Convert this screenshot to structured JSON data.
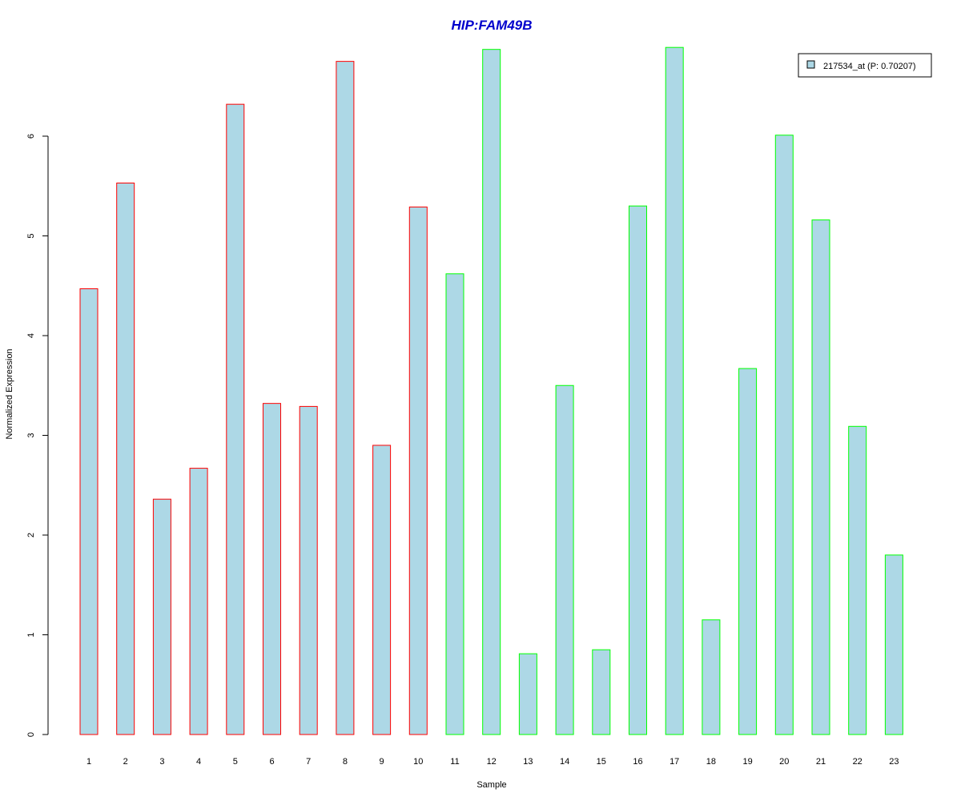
{
  "chart_data": {
    "type": "bar",
    "title": "HIP:FAM49B",
    "xlabel": "Sample",
    "ylabel": "Normalized Expression",
    "categories": [
      "1",
      "2",
      "3",
      "4",
      "5",
      "6",
      "7",
      "8",
      "9",
      "10",
      "11",
      "12",
      "13",
      "14",
      "15",
      "16",
      "17",
      "18",
      "19",
      "20",
      "21",
      "22",
      "23"
    ],
    "values": [
      4.47,
      5.53,
      2.36,
      2.67,
      6.32,
      3.32,
      3.29,
      6.75,
      2.9,
      5.29,
      4.62,
      6.87,
      0.81,
      3.5,
      0.85,
      5.3,
      6.89,
      1.15,
      3.67,
      6.01,
      5.16,
      3.09,
      1.8
    ],
    "groups": [
      "A",
      "A",
      "A",
      "A",
      "A",
      "A",
      "A",
      "A",
      "A",
      "A",
      "B",
      "B",
      "B",
      "B",
      "B",
      "B",
      "B",
      "B",
      "B",
      "B",
      "B",
      "B",
      "B"
    ],
    "group_colors": {
      "A": "#ff0000",
      "B": "#00ff00"
    },
    "bar_fill": "#add8e6",
    "title_color": "#0000cc",
    "yticks": [
      0,
      1,
      2,
      3,
      4,
      5,
      6
    ],
    "ylim": [
      0,
      7
    ],
    "legend": {
      "position": "top-right",
      "label": "217534_at (P: 0.70207)",
      "swatch_color": "#add8e6"
    },
    "grid": false
  }
}
